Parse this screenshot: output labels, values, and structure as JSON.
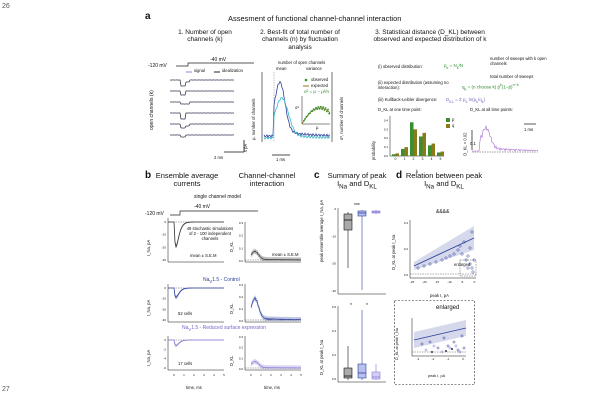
{
  "line_numbers": {
    "top": "26",
    "bottom": "27"
  },
  "panel_a": {
    "letter": "a",
    "title": "Assesment of functional channel-channel interaction",
    "col1_title": "1. Number of open channels (k)",
    "col2_title": "2. Best-fit of total number of channels (n) by fluctuation analysis",
    "col3_title": "3. Statistical distance (D_KL) between observed and expected distribution of k",
    "vhold": "-120 mV",
    "vstep": "-40 mV",
    "legend_signal": "signal",
    "legend_idealization": "idealization",
    "yaxis_open": "open channels (k)",
    "scale_pa": "4 pA",
    "scale_ms": "2 ms",
    "fluct_legend_title": "number of open channels",
    "fluct_legend_mean": "mean",
    "fluct_legend_var": "variance",
    "fluct_ylabel_left": "μ, number of channels",
    "fluct_ylabel_right": "σ², number of channels",
    "fluct_scale": "1 ms",
    "inset_observed": "observed",
    "inset_expected": "expected",
    "inset_formula": "σ² = μ − μ²/n",
    "inset_x": "μ",
    "inset_y": "σ²",
    "obs_dist": "(i) observed distribution:",
    "obs_note1": "number of sweeps with k open channels",
    "obs_note2": "total number of sweeps",
    "exp_dist": "(ii) expected distribution (assuming no interaction):",
    "kl_div": "(iii) Kullback-Leibler divergence:",
    "dkl_one": "D_KL at one time point:",
    "dkl_all": "D_KL at all time points:",
    "dkl_value": "D_KL = 0.02",
    "hist_ylabel": "probability",
    "hist_xlabel": "k",
    "hist_p": "p",
    "hist_q": "q",
    "hist_ticks_x": [
      "0",
      "1",
      "2",
      "3",
      "4",
      "5"
    ],
    "hist_ticks_y": [
      "0.0",
      "0.1",
      "0.2",
      "0.3",
      "0.4"
    ],
    "dkl_scale": "1 ms",
    "dkl_tick": "0.1"
  },
  "panel_b": {
    "letter": "b",
    "col1": "Ensemble average currents",
    "col2": "Channel-channel interaction",
    "model": "single channel model",
    "vhold": "-120 mV",
    "vstep": "-40 mV",
    "ylabel_current": "I_Na, pA",
    "sim_note": "49 stochastic simulations of 2 - 100 independent channels",
    "mean_sem": "mean ± S.E.M",
    "mean_sem2": "mean ± S.E.M",
    "control": "Na_V1.5 - Control",
    "reduced": "Na_V1.5 - Reduced surface expression",
    "cells_ctrl": "52 cells",
    "cells_red": "17 cells",
    "xlabel": "time, ms",
    "dkl_label": "D_KL",
    "xticks": [
      "0",
      "1",
      "2",
      "3",
      "4",
      "5"
    ],
    "yticks_cur": [
      "0",
      "-10",
      "-20",
      "-30"
    ],
    "yticks_cur_b": [
      "0",
      "-2",
      "-4",
      "-6"
    ],
    "yticks_dkl": [
      "0.3",
      "0.2",
      "0.1",
      "0.0"
    ]
  },
  "panel_c": {
    "letter": "c",
    "title": "Summary of peak I_Na and D_KL",
    "ylabel_top": "peak ensemble average I_Na, pA",
    "ylabel_bot": "D_KL at peak I_Na",
    "sig_top": "***",
    "sig_bot_1": "*",
    "sig_bot_2": "*",
    "yticks_top": [
      "0",
      "-10",
      "-20",
      "-30"
    ],
    "yticks_bot": [
      "0.6",
      "0.4",
      "0.2",
      "0.0"
    ]
  },
  "panel_d": {
    "letter": "d",
    "title": "Relation between peak I_Na and D_KL",
    "ylabel": "D_KL at peak I_Na",
    "xlabel": "peak I, pA",
    "sig": "&&&&",
    "enlarged": "enlarged",
    "enlarged_box": "enlarged",
    "xticks": [
      "-25",
      "-20",
      "-15",
      "-10",
      "-5",
      "0"
    ],
    "yticks": [
      "0.4",
      "0.2",
      "0.0"
    ],
    "inset_xlabel": "peak I, pA",
    "inset_ylabel": "D_KL at peak I_Na",
    "inset_xticks": [
      "-3",
      "-2",
      "-1",
      "0"
    ]
  },
  "colors": {
    "control_blue": "#2c3f9c",
    "reduced_purple": "#8a78d6",
    "green": "#3a8f2f",
    "olive": "#8b7a1a",
    "cyan": "#3ab7c9",
    "gray": "#888888"
  }
}
